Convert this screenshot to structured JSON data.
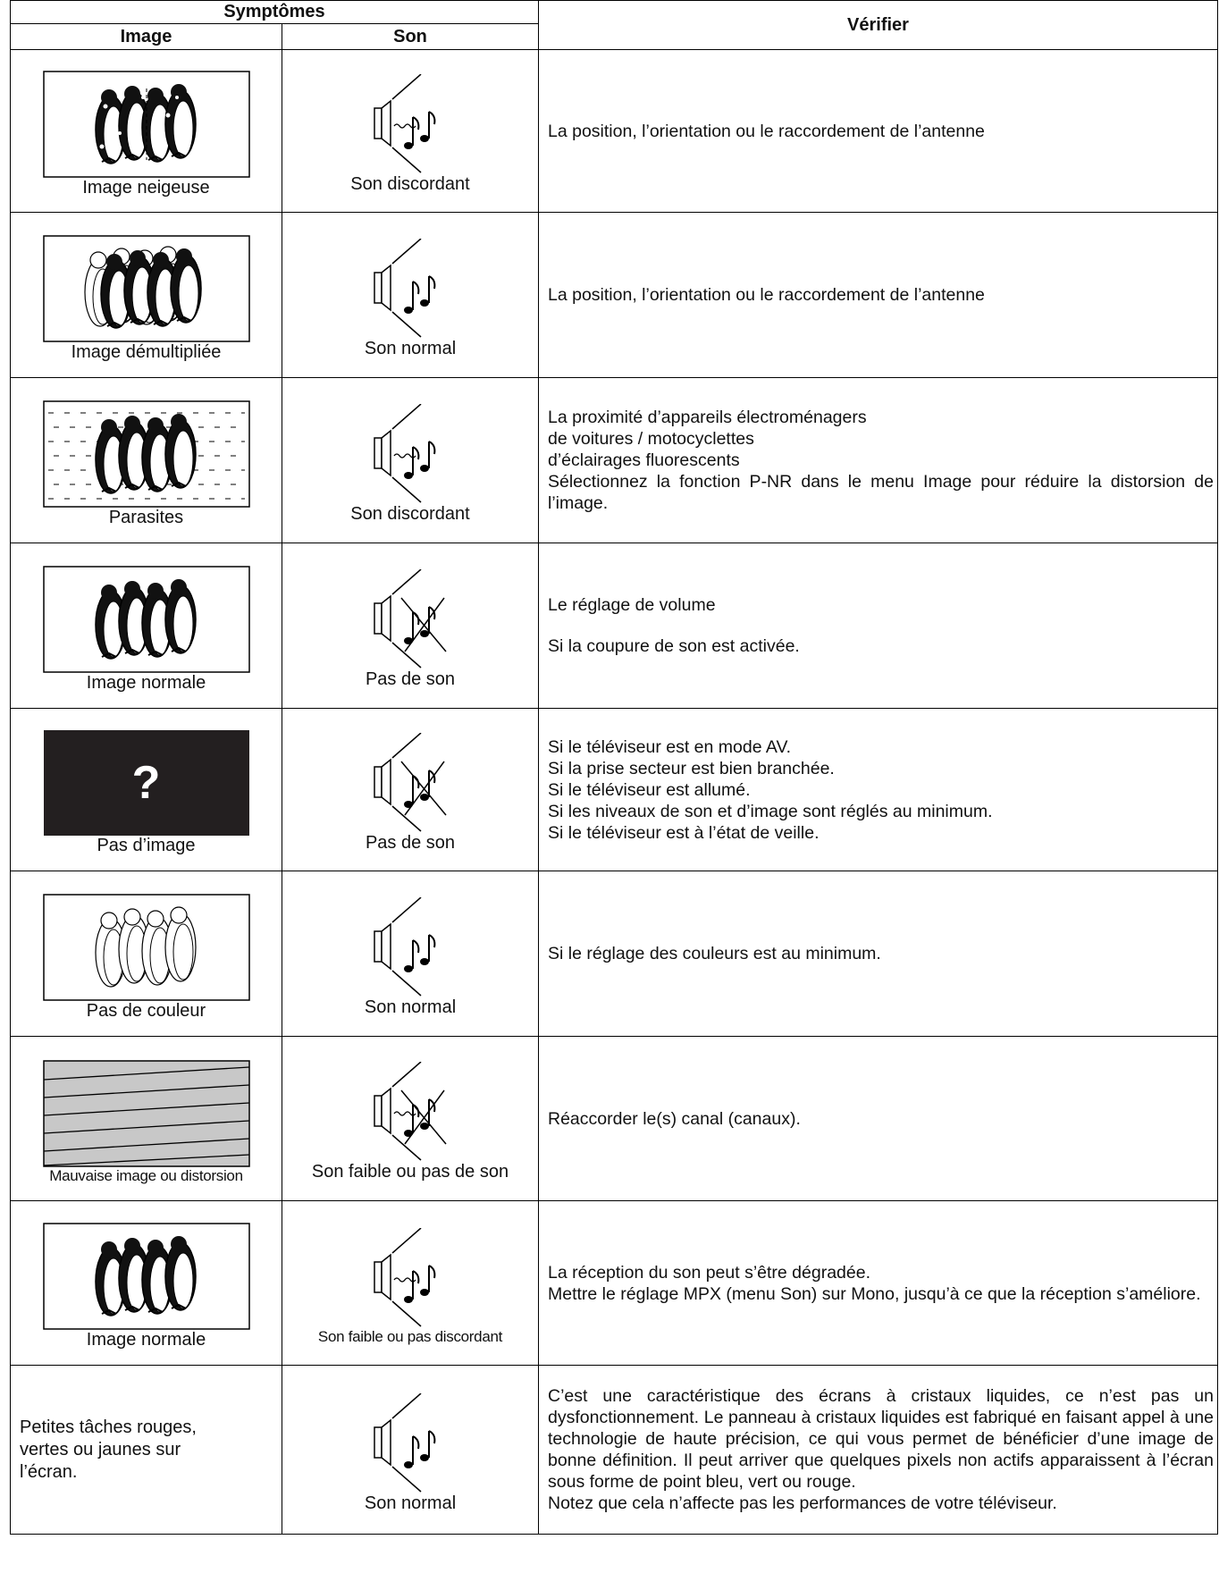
{
  "header": {
    "symptoms": "Symptômes",
    "image": "Image",
    "sound": "Son",
    "check": "Vérifier"
  },
  "rows": [
    {
      "picture": "Image neigeuse",
      "sound": "Son discordant",
      "check": [
        "La position, l’orientation ou le raccordement de l’antenne"
      ]
    },
    {
      "picture": "Image démultipliée",
      "sound": "Son normal",
      "check": [
        "La position, l’orientation ou le raccordement de l’antenne"
      ]
    },
    {
      "picture": "Parasites",
      "sound": "Son discordant",
      "check": [
        "La proximité d’appareils électroménagers",
        "de voitures / motocyclettes",
        "d’éclairages fluorescents",
        "Sélectionnez la fonction P-NR dans le menu Image pour réduire la distorsion de l’image."
      ]
    },
    {
      "picture": "Image normale",
      "sound": "Pas de son",
      "check": [
        "Le réglage de volume",
        "Si la coupure de son est activée."
      ]
    },
    {
      "picture_mark": "?",
      "picture": "Pas d’image",
      "sound": "Pas de son",
      "check": [
        "Si le téléviseur est en mode AV.",
        "Si la prise secteur est bien branchée.",
        "Si le téléviseur est allumé.",
        "Si les niveaux de son et d’image sont réglés au minimum.",
        "Si le téléviseur est à l’état de veille."
      ]
    },
    {
      "picture": "Pas de couleur",
      "sound": "Son normal",
      "check": [
        "Si le réglage des couleurs est au minimum."
      ]
    },
    {
      "picture": "Mauvaise image ou distorsion",
      "sound": "Son faible ou pas de son",
      "check": [
        "Réaccorder le(s) canal (canaux)."
      ]
    },
    {
      "picture": "Image normale",
      "sound": "Son faible ou pas discordant",
      "check": [
        "La réception du son peut s’être dégradée.",
        "Mettre le réglage MPX (menu Son) sur Mono, jusqu’à ce que la réception s’améliore."
      ]
    },
    {
      "picture": "Petites tâches rouges, vertes ou jaunes sur l’écran.",
      "sound": "Son normal",
      "check": [
        "C’est une caractéristique des écrans à cristaux liquides, ce n’est pas un dysfonctionnement. Le panneau à cristaux liquides est fabriqué en faisant appel à une technologie de haute précision, ce qui vous permet de bénéficier d’une image de bonne définition. Il peut arriver que quelques pixels non actifs apparaissent à l’écran sous forme de point bleu, vert ou rouge.",
        "Notez que cela n’affecte pas les performances de votre téléviseur."
      ]
    }
  ]
}
